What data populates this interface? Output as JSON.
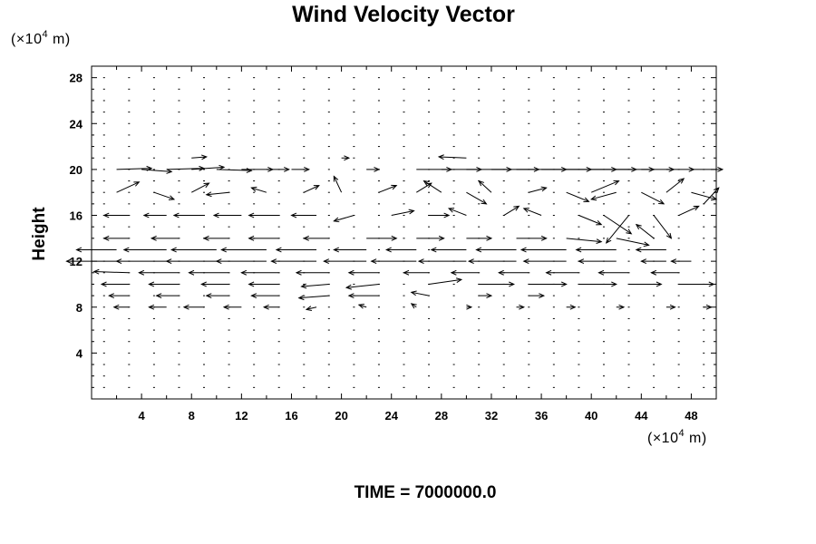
{
  "chart_data": {
    "type": "vector-field",
    "title": "Wind Velocity Vector",
    "ylabel": "Height",
    "x_unit": {
      "prefix": "(×10",
      "exponent": "4",
      "suffix": " m)"
    },
    "y_unit": {
      "prefix": "(×10",
      "exponent": "4",
      "suffix": " m)"
    },
    "footer": "TIME = 7000000.0",
    "xlim": [
      0,
      50
    ],
    "ylim": [
      0,
      29
    ],
    "x_ticks": [
      4,
      8,
      12,
      16,
      20,
      24,
      28,
      32,
      36,
      40,
      44,
      48
    ],
    "y_ticks": [
      4,
      8,
      12,
      16,
      20,
      24,
      28
    ],
    "grid": {
      "x_spacing": 2,
      "y_spacing": 1,
      "x_start": 0,
      "y_start": 1
    },
    "vector_scale_note": "vector lengths are in x-axis units",
    "vectors": [
      [
        2,
        20,
        2.8,
        0.1
      ],
      [
        4,
        20,
        2.4,
        -0.2
      ],
      [
        6,
        20,
        3.0,
        0.1
      ],
      [
        8,
        20,
        2.6,
        0.2
      ],
      [
        10,
        20,
        2.8,
        -0.1
      ],
      [
        12,
        20,
        2.5,
        0.0
      ],
      [
        14,
        20,
        1.8,
        0.0
      ],
      [
        16,
        20,
        1.4,
        0.0
      ],
      [
        22,
        20,
        1.0,
        0.0
      ],
      [
        26,
        20,
        2.8,
        0.0
      ],
      [
        28,
        20,
        3.2,
        0.0
      ],
      [
        30,
        20,
        3.6,
        0.0
      ],
      [
        32,
        20,
        3.8,
        0.0
      ],
      [
        34,
        20,
        4.0,
        0.0
      ],
      [
        36,
        20,
        4.0,
        0.0
      ],
      [
        38,
        20,
        4.0,
        0.0
      ],
      [
        40,
        20,
        3.6,
        0.0
      ],
      [
        42,
        20,
        3.0,
        0.0
      ],
      [
        44,
        20,
        2.6,
        0.0
      ],
      [
        46,
        20,
        2.2,
        0.0
      ],
      [
        48,
        20,
        2.5,
        0.0
      ],
      [
        30,
        21,
        -2.2,
        0.1
      ],
      [
        8,
        21,
        1.2,
        0.1
      ],
      [
        20,
        21,
        0.6,
        0.0
      ],
      [
        2,
        18,
        1.8,
        0.9
      ],
      [
        5,
        18,
        1.6,
        -0.6
      ],
      [
        8,
        18,
        1.4,
        0.8
      ],
      [
        11,
        18,
        -1.8,
        -0.2
      ],
      [
        14,
        18,
        -1.2,
        0.4
      ],
      [
        17,
        18,
        1.2,
        0.6
      ],
      [
        20,
        18,
        -0.6,
        1.4
      ],
      [
        23,
        18,
        1.4,
        0.6
      ],
      [
        26,
        18,
        1.2,
        0.8
      ],
      [
        28,
        18,
        -1.4,
        1.0
      ],
      [
        30,
        18,
        1.6,
        -1.0
      ],
      [
        32,
        18,
        -1.0,
        1.0
      ],
      [
        35,
        18,
        1.4,
        0.4
      ],
      [
        38,
        18,
        1.8,
        -0.8
      ],
      [
        40,
        18,
        2.2,
        1.0
      ],
      [
        42,
        18,
        -2.0,
        -0.6
      ],
      [
        44,
        18,
        1.8,
        -1.0
      ],
      [
        46,
        18,
        1.4,
        1.2
      ],
      [
        48,
        18,
        2.0,
        -0.6
      ],
      [
        49,
        17,
        1.2,
        1.4
      ],
      [
        3,
        16,
        -2.0,
        0.0
      ],
      [
        6,
        16,
        -1.8,
        0.0
      ],
      [
        9,
        16,
        -2.4,
        0.0
      ],
      [
        12,
        16,
        -2.2,
        0.0
      ],
      [
        15,
        16,
        -2.4,
        0.0
      ],
      [
        18,
        16,
        -2.0,
        0.0
      ],
      [
        21,
        16,
        -1.6,
        -0.5
      ],
      [
        24,
        16,
        1.8,
        0.4
      ],
      [
        27,
        16,
        1.6,
        0.0
      ],
      [
        30,
        16,
        -1.4,
        0.6
      ],
      [
        33,
        16,
        1.2,
        0.8
      ],
      [
        36,
        16,
        -1.4,
        0.6
      ],
      [
        39,
        16,
        1.8,
        -0.8
      ],
      [
        41,
        16,
        2.2,
        -1.6
      ],
      [
        43,
        16,
        -1.8,
        -2.4
      ],
      [
        45,
        16,
        1.4,
        -2.0
      ],
      [
        47,
        16,
        1.6,
        0.8
      ],
      [
        3,
        14,
        -2.0,
        0.0
      ],
      [
        7,
        14,
        -2.2,
        0.0
      ],
      [
        11,
        14,
        -2.0,
        0.0
      ],
      [
        15,
        14,
        -2.4,
        0.0
      ],
      [
        19,
        14,
        -2.0,
        0.0
      ],
      [
        22,
        14,
        2.4,
        0.0
      ],
      [
        26,
        14,
        2.2,
        0.0
      ],
      [
        30,
        14,
        2.0,
        0.0
      ],
      [
        34,
        14,
        2.4,
        0.0
      ],
      [
        38,
        14,
        2.8,
        -0.3
      ],
      [
        42,
        14,
        2.6,
        -0.6
      ],
      [
        45,
        14,
        -1.4,
        1.2
      ],
      [
        2,
        13,
        -3.2,
        0.0
      ],
      [
        6,
        13,
        -3.4,
        0.0
      ],
      [
        10,
        13,
        -3.6,
        0.0
      ],
      [
        14,
        13,
        -3.6,
        0.0
      ],
      [
        18,
        13,
        -3.2,
        0.0
      ],
      [
        22,
        13,
        -2.6,
        0.0
      ],
      [
        26,
        13,
        -2.4,
        0.0
      ],
      [
        30,
        13,
        -2.8,
        0.0
      ],
      [
        34,
        13,
        -3.2,
        0.0
      ],
      [
        38,
        13,
        -3.6,
        0.0
      ],
      [
        42,
        13,
        -3.2,
        0.0
      ],
      [
        46,
        13,
        -2.4,
        0.0
      ],
      [
        2,
        12,
        -4.0,
        0.0
      ],
      [
        6,
        12,
        -4.0,
        0.0
      ],
      [
        10,
        12,
        -4.0,
        0.0
      ],
      [
        14,
        12,
        -4.0,
        0.0
      ],
      [
        18,
        12,
        -3.6,
        0.0
      ],
      [
        22,
        12,
        -3.4,
        0.0
      ],
      [
        26,
        12,
        -3.6,
        0.0
      ],
      [
        30,
        12,
        -3.8,
        0.0
      ],
      [
        34,
        12,
        -3.8,
        0.0
      ],
      [
        38,
        12,
        -3.4,
        0.0
      ],
      [
        42,
        12,
        -3.0,
        0.0
      ],
      [
        46,
        12,
        -2.0,
        0.0
      ],
      [
        48,
        12,
        -1.6,
        0.0
      ],
      [
        3,
        11,
        -2.8,
        0.1
      ],
      [
        7,
        11,
        -3.2,
        0.0
      ],
      [
        11,
        11,
        -3.2,
        0.0
      ],
      [
        15,
        11,
        -3.0,
        0.0
      ],
      [
        19,
        11,
        -2.6,
        0.0
      ],
      [
        23,
        11,
        -2.4,
        0.0
      ],
      [
        27,
        11,
        -2.0,
        0.0
      ],
      [
        31,
        11,
        -2.2,
        0.0
      ],
      [
        35,
        11,
        -2.4,
        0.0
      ],
      [
        39,
        11,
        -2.6,
        0.0
      ],
      [
        43,
        11,
        -2.4,
        0.0
      ],
      [
        47,
        11,
        -2.2,
        0.0
      ],
      [
        3,
        10,
        -2.2,
        0.0
      ],
      [
        7,
        10,
        -2.4,
        0.0
      ],
      [
        11,
        10,
        -2.2,
        0.0
      ],
      [
        15,
        10,
        -2.4,
        0.0
      ],
      [
        19,
        10,
        -2.2,
        -0.2
      ],
      [
        23,
        10,
        -2.6,
        -0.3
      ],
      [
        27,
        10,
        2.6,
        0.4
      ],
      [
        31,
        10,
        2.8,
        0.0
      ],
      [
        35,
        10,
        3.0,
        0.0
      ],
      [
        39,
        10,
        3.0,
        0.0
      ],
      [
        43,
        10,
        2.6,
        0.0
      ],
      [
        47,
        10,
        2.8,
        0.0
      ],
      [
        3,
        9,
        -1.6,
        0.0
      ],
      [
        7,
        9,
        -1.8,
        0.0
      ],
      [
        11,
        9,
        -1.8,
        0.0
      ],
      [
        15,
        9,
        -2.2,
        0.0
      ],
      [
        19,
        9,
        -2.4,
        -0.2
      ],
      [
        23,
        9,
        -2.4,
        0.0
      ],
      [
        27,
        9,
        -1.4,
        0.3
      ],
      [
        31,
        9,
        1.0,
        0.0
      ],
      [
        35,
        9,
        1.2,
        0.0
      ],
      [
        3,
        8,
        -1.2,
        0.0
      ],
      [
        6,
        8,
        -1.4,
        0.0
      ],
      [
        9,
        8,
        -1.6,
        0.0
      ],
      [
        12,
        8,
        -1.4,
        0.0
      ],
      [
        15,
        8,
        -1.2,
        0.0
      ],
      [
        18,
        8,
        -0.8,
        -0.2
      ],
      [
        22,
        8,
        -0.6,
        0.2
      ],
      [
        26,
        8,
        -0.4,
        0.3
      ],
      [
        30,
        8,
        0.4,
        0.0
      ],
      [
        34,
        8,
        0.6,
        0.0
      ],
      [
        38,
        8,
        0.7,
        0.0
      ],
      [
        42,
        8,
        0.6,
        0.0
      ],
      [
        46,
        8,
        0.7,
        0.0
      ],
      [
        49,
        8,
        0.6,
        0.0
      ]
    ]
  }
}
